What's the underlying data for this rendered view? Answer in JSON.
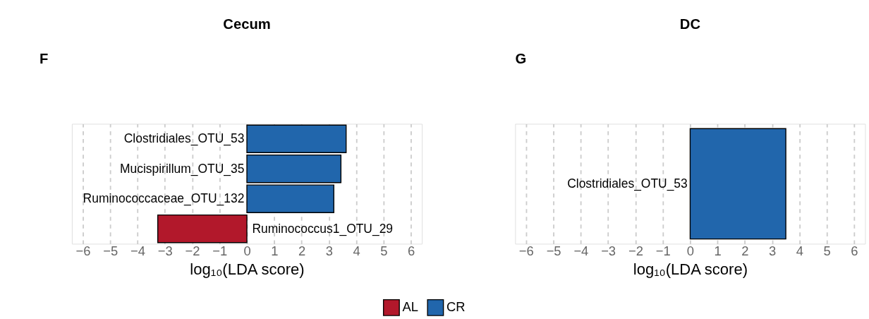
{
  "chart_data": [
    {
      "type": "bar",
      "orientation": "horizontal",
      "title": "Cecum",
      "xlabel": "log₁₀(LDA score)",
      "annotations": [
        "F"
      ],
      "categories": [
        "Clostridiales_OTU_53",
        "Mucispirillum_OTU_35",
        "Ruminococcaceae_OTU_132",
        "Ruminococcus1_OTU_29"
      ],
      "series": [
        {
          "name": "AL",
          "color": "#b2182b",
          "values": [
            null,
            null,
            null,
            -3.26
          ]
        },
        {
          "name": "CR",
          "color": "#2166ac",
          "values": [
            3.63,
            3.44,
            3.18,
            null
          ]
        }
      ],
      "xlim": [
        -6.4,
        6.4
      ],
      "xticks": [
        -6,
        -5,
        -4,
        -3,
        -2,
        -1,
        0,
        1,
        2,
        3,
        4,
        5,
        6
      ],
      "grid": "x",
      "legend": "bottom",
      "tick_labels": "x"
    },
    {
      "type": "bar",
      "orientation": "horizontal",
      "title": "DC",
      "xlabel": "log₁₀(LDA score)",
      "annotations": [
        "G"
      ],
      "categories": [
        "Clostridiales_OTU_53"
      ],
      "series": [
        {
          "color": "#2166ac",
          "values": [
            3.5
          ]
        }
      ],
      "xlim": [
        -6.4,
        6.4
      ],
      "xticks": [
        -6,
        -5,
        -4,
        -3,
        -2,
        -1,
        0,
        1,
        2,
        3,
        4,
        5,
        6
      ],
      "grid": "x",
      "tick_labels": "x"
    }
  ]
}
